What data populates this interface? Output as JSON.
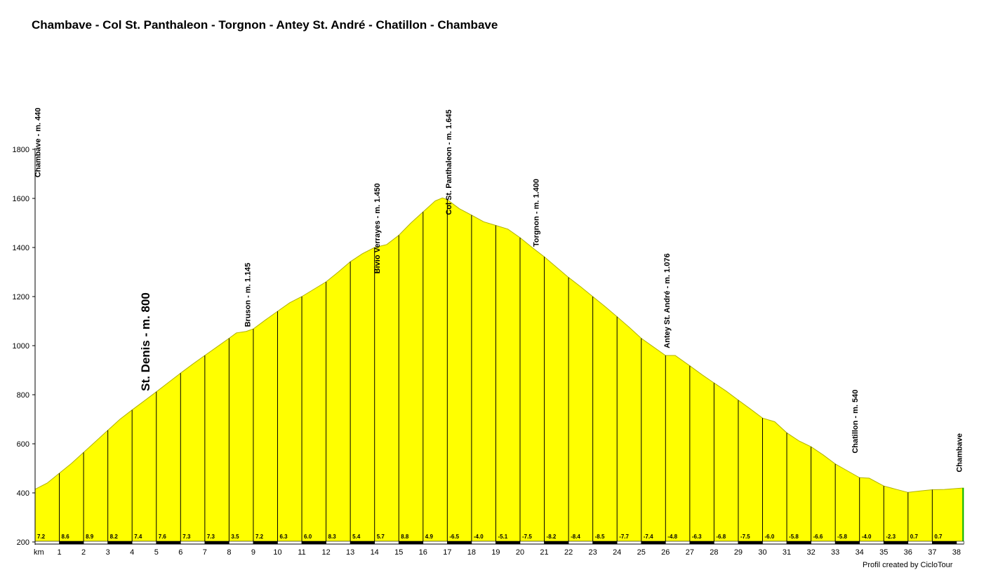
{
  "chart_data": {
    "type": "area",
    "title": "Chambave - Col St. Panthaleon - Torgnon - Antey St. André - Chatillon - Chambave",
    "credit": "Profil created by CicloTour",
    "xlabel": "km",
    "ylabel": "",
    "xlim": [
      0,
      38.3
    ],
    "ylim": [
      200,
      1800
    ],
    "y_ticks": [
      200,
      400,
      600,
      800,
      1000,
      1200,
      1400,
      1600,
      1800
    ],
    "x_ticks": [
      1,
      2,
      3,
      4,
      5,
      6,
      7,
      8,
      9,
      10,
      11,
      12,
      13,
      14,
      15,
      16,
      17,
      18,
      19,
      20,
      21,
      22,
      23,
      24,
      25,
      26,
      27,
      28,
      29,
      30,
      31,
      32,
      33,
      34,
      35,
      36,
      37,
      38
    ],
    "fill_color": "#ffff00",
    "end_line_color": "#00b000",
    "profile": [
      [
        0,
        415
      ],
      [
        0.5,
        440
      ],
      [
        1,
        480
      ],
      [
        1.5,
        520
      ],
      [
        2,
        565
      ],
      [
        2.5,
        610
      ],
      [
        3,
        655
      ],
      [
        3.5,
        700
      ],
      [
        4,
        738
      ],
      [
        4.5,
        775
      ],
      [
        5,
        812
      ],
      [
        5.5,
        850
      ],
      [
        6,
        888
      ],
      [
        6.5,
        925
      ],
      [
        7,
        960
      ],
      [
        7.5,
        995
      ],
      [
        8,
        1030
      ],
      [
        8.3,
        1052
      ],
      [
        8.7,
        1058
      ],
      [
        9,
        1068
      ],
      [
        9.5,
        1105
      ],
      [
        10,
        1140
      ],
      [
        10.5,
        1175
      ],
      [
        11,
        1200
      ],
      [
        11.5,
        1230
      ],
      [
        12,
        1260
      ],
      [
        12.5,
        1300
      ],
      [
        13,
        1342
      ],
      [
        13.5,
        1375
      ],
      [
        14,
        1400
      ],
      [
        14.5,
        1412
      ],
      [
        15,
        1450
      ],
      [
        15.5,
        1500
      ],
      [
        16,
        1545
      ],
      [
        16.5,
        1590
      ],
      [
        16.8,
        1602
      ],
      [
        17,
        1595
      ],
      [
        17.5,
        1558
      ],
      [
        18,
        1532
      ],
      [
        18.5,
        1505
      ],
      [
        19,
        1490
      ],
      [
        19.5,
        1475
      ],
      [
        20,
        1440
      ],
      [
        20.5,
        1400
      ],
      [
        21,
        1362
      ],
      [
        21.5,
        1320
      ],
      [
        22,
        1278
      ],
      [
        22.5,
        1240
      ],
      [
        23,
        1200
      ],
      [
        23.5,
        1160
      ],
      [
        24,
        1118
      ],
      [
        24.5,
        1075
      ],
      [
        25,
        1030
      ],
      [
        25.5,
        995
      ],
      [
        26,
        960
      ],
      [
        26.4,
        960
      ],
      [
        27,
        918
      ],
      [
        27.5,
        882
      ],
      [
        28,
        848
      ],
      [
        28.5,
        815
      ],
      [
        29,
        778
      ],
      [
        29.5,
        742
      ],
      [
        30,
        705
      ],
      [
        30.5,
        690
      ],
      [
        31,
        645
      ],
      [
        31.5,
        612
      ],
      [
        32,
        588
      ],
      [
        32.5,
        555
      ],
      [
        33,
        518
      ],
      [
        33.5,
        490
      ],
      [
        34,
        462
      ],
      [
        34.4,
        460
      ],
      [
        35,
        428
      ],
      [
        35.5,
        415
      ],
      [
        36,
        402
      ],
      [
        36.5,
        408
      ],
      [
        37,
        413
      ],
      [
        37.5,
        414
      ],
      [
        38,
        418
      ],
      [
        38.3,
        420
      ]
    ],
    "km_lines": [
      {
        "km": 1,
        "grade": "8.6"
      },
      {
        "km": 2,
        "grade": "8.9"
      },
      {
        "km": 3,
        "grade": "8.2"
      },
      {
        "km": 4,
        "grade": "7.4"
      },
      {
        "km": 5,
        "grade": "7.6"
      },
      {
        "km": 6,
        "grade": "7.3"
      },
      {
        "km": 7,
        "grade": "7.3"
      },
      {
        "km": 8,
        "grade": "3.5"
      },
      {
        "km": 9,
        "grade": "7.2"
      },
      {
        "km": 10,
        "grade": "6.3"
      },
      {
        "km": 11,
        "grade": "6.0"
      },
      {
        "km": 12,
        "grade": "8.3"
      },
      {
        "km": 13,
        "grade": "5.4"
      },
      {
        "km": 14,
        "grade": "5.7"
      },
      {
        "km": 15,
        "grade": "8.8"
      },
      {
        "km": 16,
        "grade": "4.9"
      },
      {
        "km": 17,
        "grade": "-6.5"
      },
      {
        "km": 18,
        "grade": "-4.0"
      },
      {
        "km": 19,
        "grade": "-5.1"
      },
      {
        "km": 20,
        "grade": "-7.5"
      },
      {
        "km": 21,
        "grade": "-8.2"
      },
      {
        "km": 22,
        "grade": "-8.4"
      },
      {
        "km": 23,
        "grade": "-8.5"
      },
      {
        "km": 24,
        "grade": "-7.7"
      },
      {
        "km": 25,
        "grade": "-7.4"
      },
      {
        "km": 26,
        "grade": "-4.8"
      },
      {
        "km": 27,
        "grade": "-6.3"
      },
      {
        "km": 28,
        "grade": "-6.8"
      },
      {
        "km": 29,
        "grade": "-7.5"
      },
      {
        "km": 30,
        "grade": "-6.0"
      },
      {
        "km": 31,
        "grade": "-5.8"
      },
      {
        "km": 32,
        "grade": "-6.6"
      },
      {
        "km": 33,
        "grade": "-5.8"
      },
      {
        "km": 34,
        "grade": "-4.0"
      },
      {
        "km": 35,
        "grade": "-2.3"
      },
      {
        "km": 36,
        "grade": "0.7"
      },
      {
        "km": 37,
        "grade": "0.7"
      }
    ],
    "first_grade": "7.2",
    "waypoints": [
      {
        "km": 0.1,
        "label": "Chambave - m. 440",
        "label_top_elev": 1970,
        "big": false
      },
      {
        "km": 4.55,
        "label": "St. Denis - m. 800",
        "label_top_elev": 1217,
        "big": true
      },
      {
        "km": 8.75,
        "label": "Bruson - m. 1.145",
        "label_top_elev": 1338,
        "big": false
      },
      {
        "km": 14.1,
        "label": "Bivio Verrayes - m. 1.450",
        "label_top_elev": 1662,
        "big": false
      },
      {
        "km": 17.05,
        "label": "Col St. Panthaleon - m. 1.645",
        "label_top_elev": 1962,
        "big": false
      },
      {
        "km": 20.65,
        "label": "Torgnon - m. 1.400",
        "label_top_elev": 1680,
        "big": false
      },
      {
        "km": 26.05,
        "label": "Antey St. André - m. 1.076",
        "label_top_elev": 1376,
        "big": false
      },
      {
        "km": 33.8,
        "label": "Chatillon - m. 540",
        "label_top_elev": 821,
        "big": false
      },
      {
        "km": 38.1,
        "label": "Chambave",
        "label_top_elev": 643,
        "big": false
      }
    ]
  }
}
